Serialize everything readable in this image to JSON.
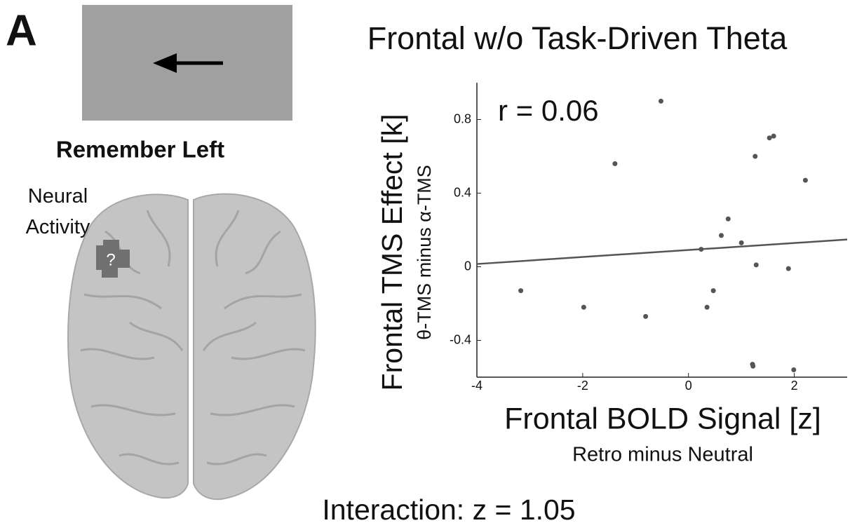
{
  "panel_label": "A",
  "cue_caption": "Remember Left",
  "brain_label": "Neural Activity",
  "roi_mark": "?",
  "footer": "Interaction: z = 1.05",
  "chart_data": {
    "type": "scatter",
    "title": "Frontal w/o Task-Driven Theta",
    "annotation": "r = 0.06",
    "x_label": "Frontal BOLD Signal [z]",
    "x_sublabel": "Retro minus Neutral",
    "y_label": "Frontal TMS Effect [k]",
    "y_sublabel": "θ-TMS minus α-TMS",
    "color": "#555555",
    "x": [
      -3.17,
      -1.98,
      -1.39,
      -0.81,
      -0.52,
      0.24,
      0.35,
      0.47,
      0.62,
      0.75,
      1.0,
      1.21,
      1.22,
      1.26,
      1.28,
      1.53,
      1.61,
      1.89,
      1.99,
      2.21
    ],
    "values": [
      -0.13,
      -0.22,
      0.56,
      -0.27,
      0.9,
      0.095,
      -0.22,
      -0.13,
      0.17,
      0.26,
      0.13,
      -0.53,
      -0.54,
      0.6,
      0.01,
      0.7,
      0.71,
      -0.01,
      -0.56,
      0.47
    ],
    "fit": {
      "color": "#555555",
      "x": [
        -4,
        3
      ],
      "values": [
        0.015,
        0.148
      ]
    },
    "xlim": [
      -4,
      3
    ],
    "ylim": [
      -0.6,
      1.0
    ],
    "xticks": [
      -4,
      -2,
      0,
      2
    ],
    "yticks": [
      -0.4,
      0,
      0.4,
      0.8
    ]
  }
}
